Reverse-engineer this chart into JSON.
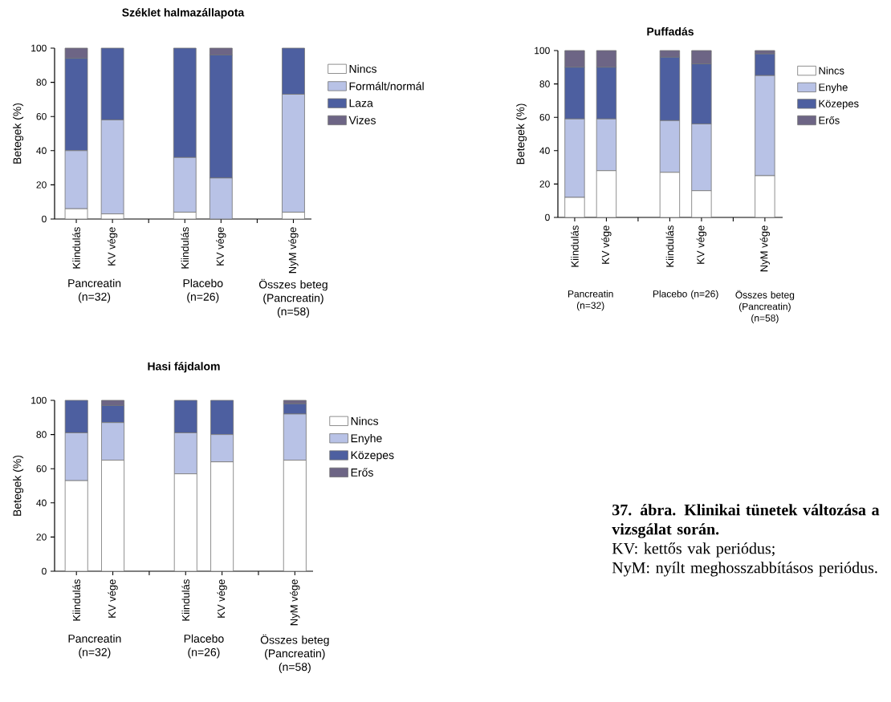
{
  "chart_data": [
    {
      "type": "bar",
      "title": "Széklet halmazállapota",
      "ylabel": "Betegek (%)",
      "stacked": true,
      "legend": "right",
      "categories": [
        "Kiindulás",
        "KV vége",
        null,
        "Kiindulás",
        "KV vége",
        null,
        "NyM vége"
      ],
      "series": [
        {
          "name": "Nincs",
          "color": "#ffffff",
          "values": [
            6,
            3,
            null,
            4,
            0,
            null,
            4
          ]
        },
        {
          "name": "Formált/normál",
          "color": "#b8c2e6",
          "values": [
            34,
            55,
            null,
            32,
            24,
            null,
            69
          ]
        },
        {
          "name": "Laza",
          "color": "#4d5fa0",
          "values": [
            54,
            42,
            null,
            64,
            72,
            null,
            27
          ]
        },
        {
          "name": "Vizes",
          "color": "#6d6585",
          "values": [
            6,
            0,
            null,
            0,
            4,
            null,
            0
          ]
        }
      ],
      "ylim": [
        0,
        100
      ],
      "yticks": [
        0,
        20,
        40,
        60,
        80,
        100
      ],
      "annotations": [
        "Pancreatin (n=32)",
        "Placebo (n=26)",
        "Összes beteg (Pancreatin) (n=58)"
      ]
    },
    {
      "type": "bar",
      "title": "Puffadás",
      "ylabel": "Betegek (%)",
      "stacked": true,
      "legend": "right",
      "categories": [
        "Kiindulás",
        "KV vége",
        null,
        "Kiindulás",
        "KV vége",
        null,
        "NyM vége"
      ],
      "series": [
        {
          "name": "Nincs",
          "color": "#ffffff",
          "values": [
            12,
            28,
            null,
            27,
            16,
            null,
            25
          ]
        },
        {
          "name": "Enyhe",
          "color": "#b8c2e6",
          "values": [
            47,
            31,
            null,
            31,
            40,
            null,
            60
          ]
        },
        {
          "name": "Közepes",
          "color": "#4d5fa0",
          "values": [
            31,
            31,
            null,
            38,
            36,
            null,
            13
          ]
        },
        {
          "name": "Erős",
          "color": "#6d6585",
          "values": [
            10,
            10,
            null,
            4,
            8,
            null,
            2
          ]
        }
      ],
      "ylim": [
        0,
        100
      ],
      "yticks": [
        0,
        20,
        40,
        60,
        80,
        100
      ],
      "annotations": [
        "Pancreatin (n=32)",
        "Placebo (n=26)",
        "Összes beteg (Pancreatin) (n=58)"
      ]
    },
    {
      "type": "bar",
      "title": "Hasi fájdalom",
      "ylabel": "Betegek (%)",
      "stacked": true,
      "legend": "right",
      "categories": [
        "Kiindulás",
        "KV vége",
        null,
        "Kiindulás",
        "KV vége",
        null,
        "NyM vége"
      ],
      "series": [
        {
          "name": "Nincs",
          "color": "#ffffff",
          "values": [
            53,
            65,
            null,
            57,
            64,
            null,
            65
          ]
        },
        {
          "name": "Enyhe",
          "color": "#b8c2e6",
          "values": [
            28,
            22,
            null,
            24,
            16,
            null,
            27
          ]
        },
        {
          "name": "Közepes",
          "color": "#4d5fa0",
          "values": [
            19,
            10,
            null,
            19,
            20,
            null,
            6
          ]
        },
        {
          "name": "Erős",
          "color": "#6d6585",
          "values": [
            0,
            3,
            null,
            0,
            0,
            null,
            2
          ]
        }
      ],
      "ylim": [
        0,
        100
      ],
      "yticks": [
        0,
        20,
        40,
        60,
        80,
        100
      ],
      "annotations": [
        "Pancreatin (n=32)",
        "Placebo (n=26)",
        "Összes beteg (Pancreatin) (n=58)"
      ]
    },
    {
      "type": "other",
      "title": "37. ábra. Klinikai tünetek változása a vizsgálat során.",
      "annotations": [
        "KV: kettős vak periódus;",
        "NyM: nyílt meghosszabbításos periódus."
      ]
    }
  ]
}
